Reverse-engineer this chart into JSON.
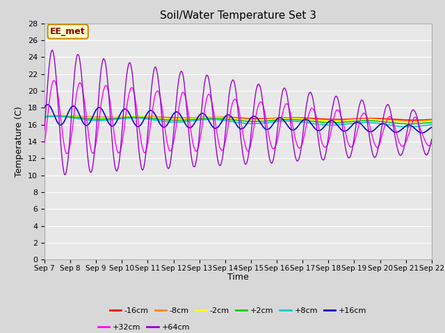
{
  "title": "Soil/Water Temperature Set 3",
  "xlabel": "Time",
  "ylabel": "Temperature (C)",
  "ylim": [
    0,
    28
  ],
  "yticks": [
    0,
    2,
    4,
    6,
    8,
    10,
    12,
    14,
    16,
    18,
    20,
    22,
    24,
    26,
    28
  ],
  "xlim": [
    0,
    15
  ],
  "xtick_labels": [
    "Sep 7",
    "Sep 8",
    "Sep 9",
    "Sep 10",
    "Sep 11",
    "Sep 12",
    "Sep 13",
    "Sep 14",
    "Sep 15",
    "Sep 16",
    "Sep 17",
    "Sep 18",
    "Sep 19",
    "Sep 20",
    "Sep 21",
    "Sep 22"
  ],
  "series_colors": {
    "-16cm": "#ff0000",
    "-8cm": "#ff8800",
    "-2cm": "#ffff00",
    "+2cm": "#00cc00",
    "+8cm": "#00cccc",
    "+16cm": "#0000cc",
    "+32cm": "#ff00ff",
    "+64cm": "#9900cc"
  },
  "legend_label_order": [
    "-16cm",
    "-8cm",
    "-2cm",
    "+2cm",
    "+8cm",
    "+16cm",
    "+32cm",
    "+64cm"
  ],
  "fig_bg_color": "#d8d8d8",
  "plot_bg_color": "#e8e8e8",
  "grid_color": "#ffffff",
  "annotation_text": "EE_met",
  "annotation_bg": "#ffffcc",
  "annotation_border": "#cc8800",
  "title_fontsize": 11,
  "axis_label_fontsize": 9,
  "tick_fontsize": 8
}
